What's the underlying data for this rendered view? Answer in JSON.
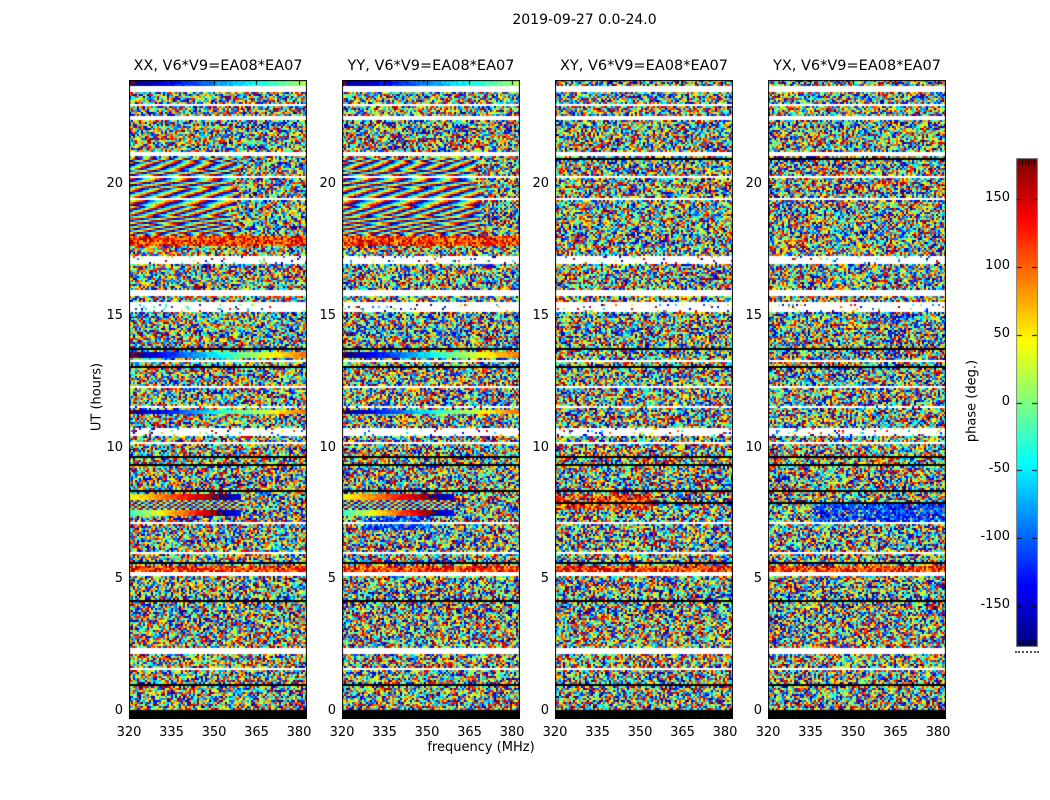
{
  "figure": {
    "title": "2019-09-27 0.0-24.0",
    "background_color": "#ffffff",
    "text_color": "#000000"
  },
  "chart_data": {
    "type": "heatmap",
    "title": "2019-09-27 0.0-24.0",
    "xlabel": "frequency (MHz)",
    "ylabel": "UT (hours)",
    "x_ticks": [
      320,
      335,
      350,
      365,
      380
    ],
    "y_ticks": [
      0,
      5,
      10,
      15,
      20
    ],
    "x_range_mhz": [
      320,
      382.8
    ],
    "y_range_hours": [
      0,
      24
    ],
    "colormap": "jet",
    "grid": false,
    "panels": [
      {
        "label": "XX, V6*V9=EA08*EA07",
        "pol": "XX",
        "baseline": "V6*V9=EA08*EA07"
      },
      {
        "label": "YY, V6*V9=EA08*EA07",
        "pol": "YY",
        "baseline": "V6*V9=EA08*EA07"
      },
      {
        "label": "XY, V6*V9=EA08*EA07",
        "pol": "XY",
        "baseline": "V6*V9=EA08*EA07"
      },
      {
        "label": "YX, V6*V9=EA08*EA07",
        "pol": "YX",
        "baseline": "V6*V9=EA08*EA07"
      }
    ],
    "colorbar": {
      "label": "phase (deg.)",
      "ticks": [
        150,
        100,
        50,
        0,
        -50,
        -100,
        -150
      ],
      "range_deg": [
        -180,
        180
      ],
      "colormap": "jet",
      "position": "right"
    },
    "bands": [
      {
        "type": "gap",
        "ut": [
          23.64,
          23.74
        ]
      },
      {
        "type": "gap",
        "ut": [
          23.01,
          23.09
        ]
      },
      {
        "type": "gap",
        "ut": [
          22.52,
          22.6
        ]
      },
      {
        "type": "gap",
        "ut": [
          21.08,
          21.27
        ]
      },
      {
        "type": "gap",
        "ut": [
          20.28,
          20.36
        ]
      },
      {
        "type": "gap",
        "ut": [
          19.44,
          19.52
        ]
      },
      {
        "type": "gap",
        "ut": [
          15.83,
          16.02
        ]
      },
      {
        "type": "gap",
        "ut": [
          13.33,
          13.4
        ]
      },
      {
        "type": "gap",
        "ut": [
          12.31,
          12.35
        ]
      },
      {
        "type": "gap",
        "ut": [
          10.18,
          10.22
        ]
      },
      {
        "type": "gap",
        "ut": [
          7.14,
          7.25
        ]
      },
      {
        "type": "gap",
        "ut": [
          6.53,
          6.57
        ]
      },
      {
        "type": "gap",
        "ut": [
          6.0,
          6.04
        ]
      },
      {
        "type": "gap",
        "ut": [
          5.13,
          5.28
        ]
      },
      {
        "type": "gap",
        "ut": [
          2.24,
          2.43
        ]
      },
      {
        "type": "gap",
        "ut": [
          1.63,
          1.67
        ]
      },
      {
        "type": "gap",
        "ut": [
          0.42,
          0.46
        ]
      },
      {
        "type": "sparse",
        "ut": [
          17.05,
          17.3
        ]
      },
      {
        "type": "sparse",
        "ut": [
          15.22,
          15.49
        ]
      },
      {
        "type": "sparse",
        "ut": [
          11.51,
          11.62
        ]
      },
      {
        "type": "sparse",
        "ut": [
          10.48,
          10.75
        ]
      },
      {
        "type": "flag",
        "ut": [
          23.51,
          23.58
        ]
      },
      {
        "type": "flag",
        "ut": [
          13.75,
          13.86
        ]
      },
      {
        "type": "flag",
        "ut": [
          13.03,
          13.14
        ]
      },
      {
        "type": "flag",
        "ut": [
          12.8,
          12.87
        ]
      },
      {
        "type": "flag",
        "ut": [
          9.68,
          9.76
        ]
      },
      {
        "type": "flag",
        "ut": [
          9.38,
          9.45
        ]
      },
      {
        "type": "flag",
        "ut": [
          8.36,
          8.43
        ]
      },
      {
        "type": "flag",
        "ut": [
          4.18,
          4.25
        ]
      },
      {
        "type": "flag",
        "ut": [
          0.99,
          1.06
        ]
      },
      {
        "type": "flag",
        "ut": [
          -0.3,
          0.05
        ]
      },
      {
        "type": "gradient",
        "ut": [
          23.7,
          24.2
        ],
        "p0": 178,
        "k": 200,
        "fmax": 1.0,
        "panels": [
          0,
          1
        ]
      },
      {
        "type": "gradient",
        "ut": [
          13.44,
          13.71
        ],
        "p0": 172,
        "k": 290,
        "fmax": 1.0,
        "panels": [
          0,
          1
        ]
      },
      {
        "type": "gradient",
        "ut": [
          11.35,
          11.47
        ],
        "p0": 172,
        "k": 290,
        "fmax": 1.0,
        "panels": [
          0,
          1
        ]
      },
      {
        "type": "gradient",
        "ut": [
          8.05,
          8.28
        ],
        "p0": 40,
        "k": 280,
        "fmax": 0.62,
        "panels": [
          0,
          1
        ]
      },
      {
        "type": "gradient",
        "ut": [
          7.45,
          7.65
        ],
        "p0": -30,
        "k": 420,
        "fmax": 0.62,
        "panels": [
          0,
          1
        ]
      },
      {
        "type": "fringe",
        "ut": [
          18.1,
          21.05
        ],
        "fmax": 0.6,
        "panels": [
          0
        ]
      },
      {
        "type": "fringe",
        "ut": [
          18.1,
          21.05
        ],
        "fmax": 0.78,
        "panels": [
          1
        ]
      },
      {
        "type": "fringe_h",
        "ut": [
          7.65,
          8.05
        ],
        "fmax": 0.62,
        "panels": [
          0,
          1
        ]
      },
      {
        "type": "warm",
        "ut": [
          17.7,
          18.1
        ],
        "panels": [
          0,
          1
        ]
      },
      {
        "type": "warm",
        "ut": [
          5.32,
          5.51
        ]
      }
    ],
    "patches": [
      {
        "panel": 1,
        "ut": [
          6.9,
          7.45
        ],
        "f": [
          0.12,
          0.5
        ],
        "mode": "cool"
      },
      {
        "panel": 2,
        "ut": [
          7.7,
          8.3
        ],
        "f": [
          0.0,
          0.55
        ],
        "mode": "warm"
      },
      {
        "panel": 3,
        "ut": [
          7.2,
          7.95
        ],
        "f": [
          0.25,
          1.0
        ],
        "mode": "cool"
      }
    ]
  }
}
